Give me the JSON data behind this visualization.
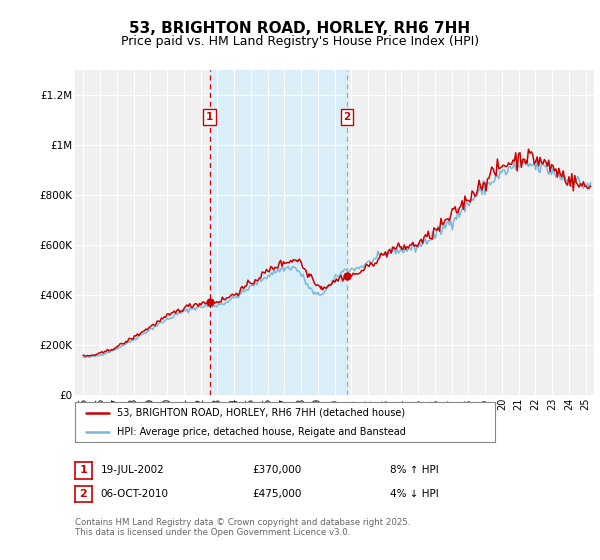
{
  "title": "53, BRIGHTON ROAD, HORLEY, RH6 7HH",
  "subtitle": "Price paid vs. HM Land Registry's House Price Index (HPI)",
  "ylabel_ticks": [
    "£0",
    "£200K",
    "£400K",
    "£600K",
    "£800K",
    "£1M",
    "£1.2M"
  ],
  "ytick_values": [
    0,
    200000,
    400000,
    600000,
    800000,
    1000000,
    1200000
  ],
  "ylim": [
    0,
    1300000
  ],
  "xlim_start": 1994.5,
  "xlim_end": 2025.5,
  "xtick_years": [
    1995,
    1996,
    1997,
    1998,
    1999,
    2000,
    2001,
    2002,
    2003,
    2004,
    2005,
    2006,
    2007,
    2008,
    2009,
    2010,
    2011,
    2012,
    2013,
    2014,
    2015,
    2016,
    2017,
    2018,
    2019,
    2020,
    2021,
    2022,
    2023,
    2024,
    2025
  ],
  "hpi_color": "#7ab8d9",
  "price_color": "#cc0000",
  "vline1_x": 2002.54,
  "vline2_x": 2010.76,
  "vline1_color": "#cc0000",
  "vline2_color": "#7ab8d9",
  "shade_color": "#daeef8",
  "legend_label1": "53, BRIGHTON ROAD, HORLEY, RH6 7HH (detached house)",
  "legend_label2": "HPI: Average price, detached house, Reigate and Banstead",
  "annotation1_label": "1",
  "annotation1_date": "19-JUL-2002",
  "annotation1_price": "£370,000",
  "annotation1_hpi": "8% ↑ HPI",
  "annotation2_label": "2",
  "annotation2_date": "06-OCT-2010",
  "annotation2_price": "£475,000",
  "annotation2_hpi": "4% ↓ HPI",
  "footer": "Contains HM Land Registry data © Crown copyright and database right 2025.\nThis data is licensed under the Open Government Licence v3.0.",
  "bg_color": "#ffffff",
  "plot_bg_color": "#f0f0f0",
  "grid_color": "#ffffff",
  "title_fontsize": 11,
  "subtitle_fontsize": 9,
  "purchase1_val": 370000,
  "purchase2_val": 475000
}
